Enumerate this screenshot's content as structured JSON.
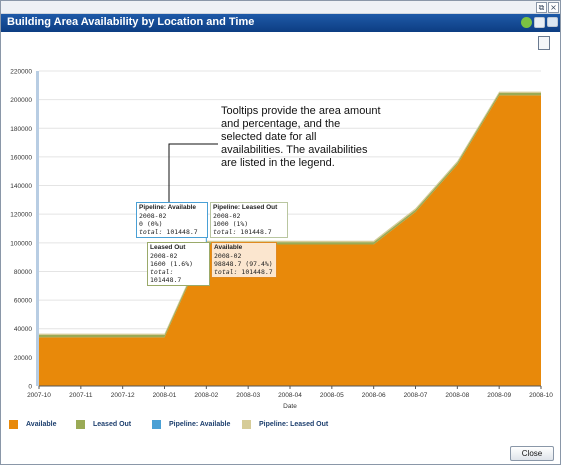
{
  "window": {
    "title": "Building Area Availability by Location and Time",
    "close_label": "Close"
  },
  "annotation_text": "Tooltips provide the area amount and percentage, and the selected date for all availabilities. The availabilities are listed in the legend.",
  "tooltips": [
    {
      "title": "Pipeline: Available",
      "date": "2008-02",
      "value": "0 (0%)",
      "total_label": "total:",
      "total": "101448.7",
      "bg": "#ffffff",
      "border": "#4aa0d5"
    },
    {
      "title": "Pipeline: Leased Out",
      "date": "2008-02",
      "value": "1000 (1%)",
      "total_label": "total:",
      "total": "101448.7",
      "bg": "#ffffff",
      "border": "#b9c6a0"
    },
    {
      "title": "Leased Out",
      "date": "2008-02",
      "value": "1600 (1.6%)",
      "total_label": "total:",
      "total": "101448.7",
      "bg": "#ffffff",
      "border": "#9aaa6a"
    },
    {
      "title": "Available",
      "date": "2008-02",
      "value": "98848.7 (97.4%)",
      "total_label": "total:",
      "total": "101448.7",
      "bg": "#fbe6cf",
      "border": "#e08a20"
    }
  ],
  "chart_data": {
    "type": "area",
    "title": "",
    "xlabel": "Date",
    "ylabel": "",
    "ylim": [
      0,
      220000
    ],
    "yticks": [
      0,
      20000,
      40000,
      60000,
      80000,
      100000,
      120000,
      140000,
      160000,
      180000,
      200000,
      220000
    ],
    "categories": [
      "2007-10",
      "2007-11",
      "2007-12",
      "2008-01",
      "2008-02",
      "2008-03",
      "2008-04",
      "2008-05",
      "2008-06",
      "2008-07",
      "2008-08",
      "2008-09",
      "2008-10"
    ],
    "series": [
      {
        "name": "Available",
        "color": "#e8890a",
        "values": [
          34000,
          34000,
          34000,
          34000,
          98848.7,
          98848.7,
          98848.7,
          98848.7,
          98848.7,
          121500,
          154500,
          203000,
          203000
        ]
      },
      {
        "name": "Leased Out",
        "color": "#9aaa55",
        "values": [
          1600,
          1600,
          1600,
          1600,
          1600,
          1600,
          1600,
          1600,
          1600,
          1600,
          1600,
          1600,
          1600
        ]
      },
      {
        "name": "Pipeline: Available",
        "color": "#4aa0d5",
        "values": [
          0,
          0,
          0,
          0,
          0,
          0,
          0,
          0,
          0,
          0,
          0,
          0,
          0
        ]
      },
      {
        "name": "Pipeline: Leased Out",
        "color": "#d6cc98",
        "values": [
          1000,
          1000,
          1000,
          1000,
          1000,
          1000,
          1000,
          1000,
          1000,
          1000,
          1000,
          1000,
          1000
        ]
      }
    ],
    "grid": true,
    "legend_position": "bottom-left"
  }
}
